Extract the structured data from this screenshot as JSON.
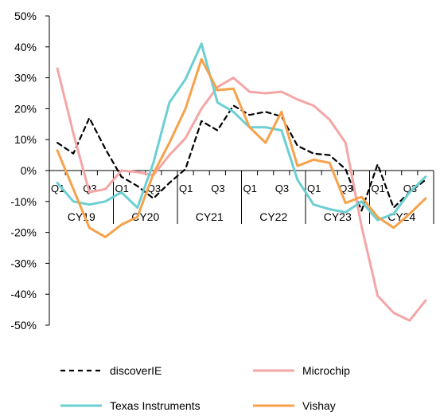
{
  "chart_data": {
    "type": "line",
    "title": "",
    "xlabel": "",
    "ylabel": "",
    "ylim": [
      -50,
      50
    ],
    "y_tick_labels": [
      "50%",
      "40%",
      "30%",
      "20%",
      "10%",
      "0%",
      "-10%",
      "-20%",
      "-30%",
      "-40%",
      "-50%"
    ],
    "y_tick_values": [
      50,
      40,
      30,
      20,
      10,
      0,
      -10,
      -20,
      -30,
      -40,
      -50
    ],
    "quarter_tick_labels": [
      "Q1",
      "Q3",
      "Q1",
      "Q3",
      "Q1",
      "Q3",
      "Q1",
      "Q3",
      "Q1",
      "Q3",
      "Q1",
      "Q3"
    ],
    "year_labels": [
      "CY19",
      "CY20",
      "CY21",
      "CY22",
      "CY23",
      "CY24"
    ],
    "grid": false,
    "legend_position": "bottom",
    "x": [
      "Q1 CY19",
      "Q2 CY19",
      "Q3 CY19",
      "Q4 CY19",
      "Q1 CY20",
      "Q2 CY20",
      "Q3 CY20",
      "Q4 CY20",
      "Q1 CY21",
      "Q2 CY21",
      "Q3 CY21",
      "Q4 CY21",
      "Q1 CY22",
      "Q2 CY22",
      "Q3 CY22",
      "Q4 CY22",
      "Q1 CY23",
      "Q2 CY23",
      "Q3 CY23",
      "Q4 CY23",
      "Q1 CY24",
      "Q2 CY24",
      "Q3 CY24",
      "Q4 CY24"
    ],
    "series": [
      {
        "name": "discoverIE",
        "color": "#000000",
        "dash": "dashed",
        "values": [
          9.0,
          5.5,
          17.0,
          7.0,
          -2.0,
          -5.0,
          -9.0,
          -4.0,
          0.5,
          16.0,
          13.0,
          21.0,
          18.0,
          19.0,
          17.5,
          8.0,
          5.5,
          5.0,
          0.5,
          -13.0,
          2.0,
          -12.0,
          -7.0,
          -3.0
        ]
      },
      {
        "name": "Microchip",
        "color": "#f4a6a6",
        "dash": "solid",
        "values": [
          33.0,
          12.0,
          -7.0,
          -6.0,
          0.0,
          -0.5,
          -1.5,
          5.0,
          10.5,
          20.0,
          27.0,
          30.0,
          25.5,
          25.0,
          25.5,
          23.0,
          21.0,
          16.5,
          9.0,
          -18.0,
          -40.5,
          -46.0,
          -48.5,
          -42.0
        ]
      },
      {
        "name": "Texas Instruments",
        "color": "#6ccfd3",
        "dash": "solid",
        "values": [
          -4.0,
          -10.0,
          -11.0,
          -10.0,
          -7.0,
          -12.0,
          2.5,
          22.0,
          29.5,
          41.0,
          22.0,
          19.0,
          14.0,
          14.0,
          13.0,
          -3.0,
          -11.0,
          -12.5,
          -13.5,
          -10.0,
          -16.0,
          -14.0,
          -7.0,
          -2.0
        ]
      },
      {
        "name": "Vishay",
        "color": "#f7a24b",
        "dash": "solid",
        "values": [
          6.5,
          -6.0,
          -18.5,
          -21.5,
          -17.5,
          -15.0,
          -1.0,
          9.0,
          20.0,
          36.0,
          26.0,
          26.5,
          14.0,
          9.0,
          19.0,
          1.5,
          3.5,
          2.5,
          -10.5,
          -8.5,
          -15.0,
          -18.5,
          -14.0,
          -9.0
        ]
      }
    ]
  }
}
